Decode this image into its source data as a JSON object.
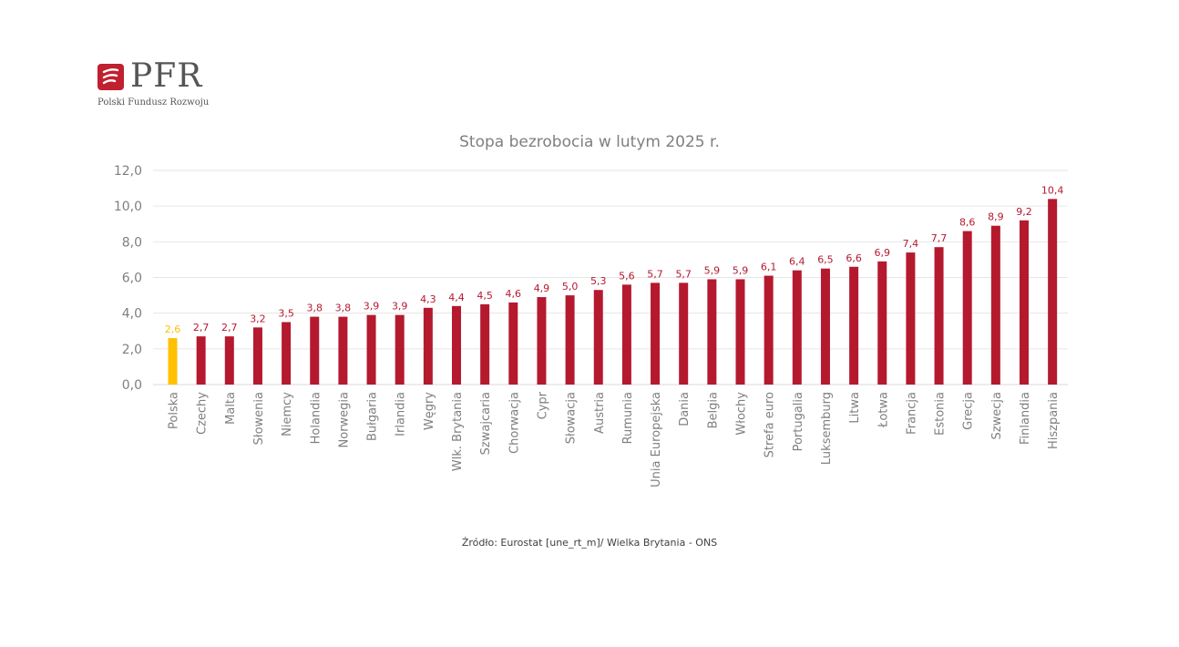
{
  "brand": {
    "name": "PFR",
    "subtitle": "Polski Fundusz Rozwoju",
    "color": "#c0202f"
  },
  "source": "Źródło: Eurostat [une_rt_m]/ Wielka Brytania - ONS",
  "colors": {
    "bar": "#b5192e",
    "highlight": "#ffc000",
    "label": "#b5192e",
    "highlight_label": "#ffc000",
    "axis_text": "#7f7f7f",
    "grid": "#e6e6e6"
  },
  "chart_data": {
    "type": "bar",
    "title": "Stopa bezrobocia w lutym 2025 r.",
    "xlabel": "",
    "ylabel": "",
    "ylim": [
      0,
      12
    ],
    "yticks": [
      "0,0",
      "2,0",
      "4,0",
      "6,0",
      "8,0",
      "10,0",
      "12,0"
    ],
    "grid": true,
    "highlight_category": "Polska",
    "categories": [
      "Polska",
      "Czechy",
      "Malta",
      "Słowenia",
      "Niemcy",
      "Holandia",
      "Norwegia",
      "Bułgaria",
      "Irlandia",
      "Węgry",
      "Wlk. Brytania",
      "Szwajcaria",
      "Chorwacja",
      "Cypr",
      "Słowacja",
      "Austria",
      "Rumunia",
      "Unia Europejska",
      "Dania",
      "Belgia",
      "Włochy",
      "Strefa euro",
      "Portugalia",
      "Luksemburg",
      "Litwa",
      "Łotwa",
      "Francja",
      "Estonia",
      "Grecja",
      "Szwecja",
      "Finlandia",
      "Hiszpania"
    ],
    "values": [
      2.6,
      2.7,
      2.7,
      3.2,
      3.5,
      3.8,
      3.8,
      3.9,
      3.9,
      4.3,
      4.4,
      4.5,
      4.6,
      4.9,
      5.0,
      5.3,
      5.6,
      5.7,
      5.7,
      5.9,
      5.9,
      6.1,
      6.4,
      6.5,
      6.6,
      6.9,
      7.4,
      7.7,
      8.6,
      8.9,
      9.2,
      10.4
    ],
    "labels": [
      "2,6",
      "2,7",
      "2,7",
      "3,2",
      "3,5",
      "3,8",
      "3,8",
      "3,9",
      "3,9",
      "4,3",
      "4,4",
      "4,5",
      "4,6",
      "4,9",
      "5,0",
      "5,3",
      "5,6",
      "5,7",
      "5,7",
      "5,9",
      "5,9",
      "6,1",
      "6,4",
      "6,5",
      "6,6",
      "6,9",
      "7,4",
      "7,7",
      "8,6",
      "8,9",
      "9,2",
      "10,4"
    ]
  }
}
